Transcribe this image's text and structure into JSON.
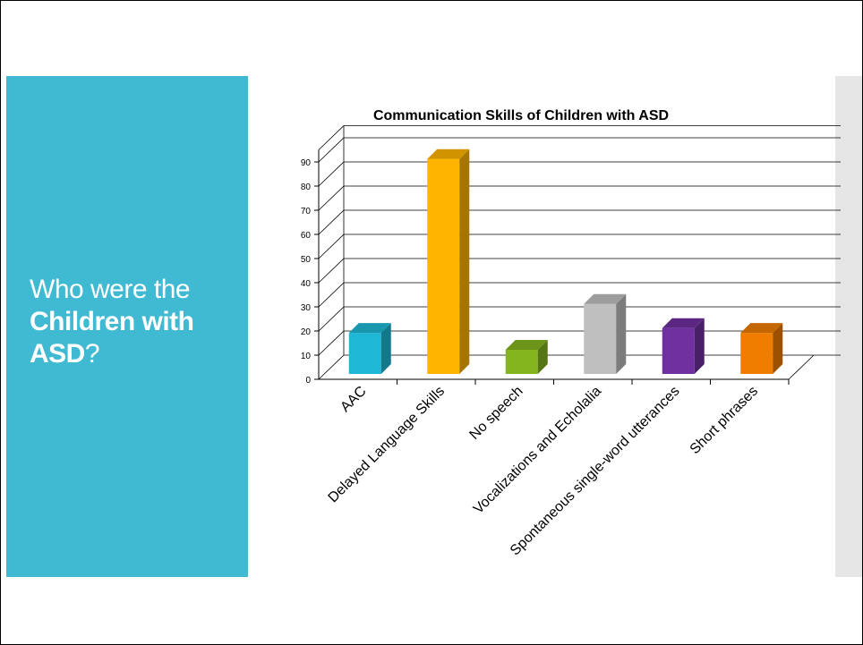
{
  "slide": {
    "title_line1": "Who were the",
    "title_bold": "Children with ASD",
    "title_end": "?",
    "colors": {
      "left_panel": "#40bad2",
      "right_strip": "#e6e6e6",
      "title_text": "#ffffff"
    }
  },
  "chart_data": {
    "type": "bar",
    "title": "Communication Skills of Children with ASD",
    "xlabel": "",
    "ylabel": "",
    "categories": [
      "AAC",
      "Delayed Language Skills",
      "No speech",
      "Vocalizations and Echolalia",
      "Spontaneous single-word utterances",
      "Short phrases"
    ],
    "values": [
      17,
      89,
      10,
      29,
      19,
      17
    ],
    "colors": [
      "#1eb8d6",
      "#ffb400",
      "#84b51e",
      "#bfbfbf",
      "#7030a0",
      "#f07d00"
    ],
    "y_ticks": [
      "0",
      "10",
      "20",
      "30",
      "40",
      "50",
      "60",
      "70",
      "80",
      "90"
    ],
    "ylim": [
      0,
      95
    ],
    "grid": true,
    "legend": "none",
    "style": "3d-column"
  }
}
